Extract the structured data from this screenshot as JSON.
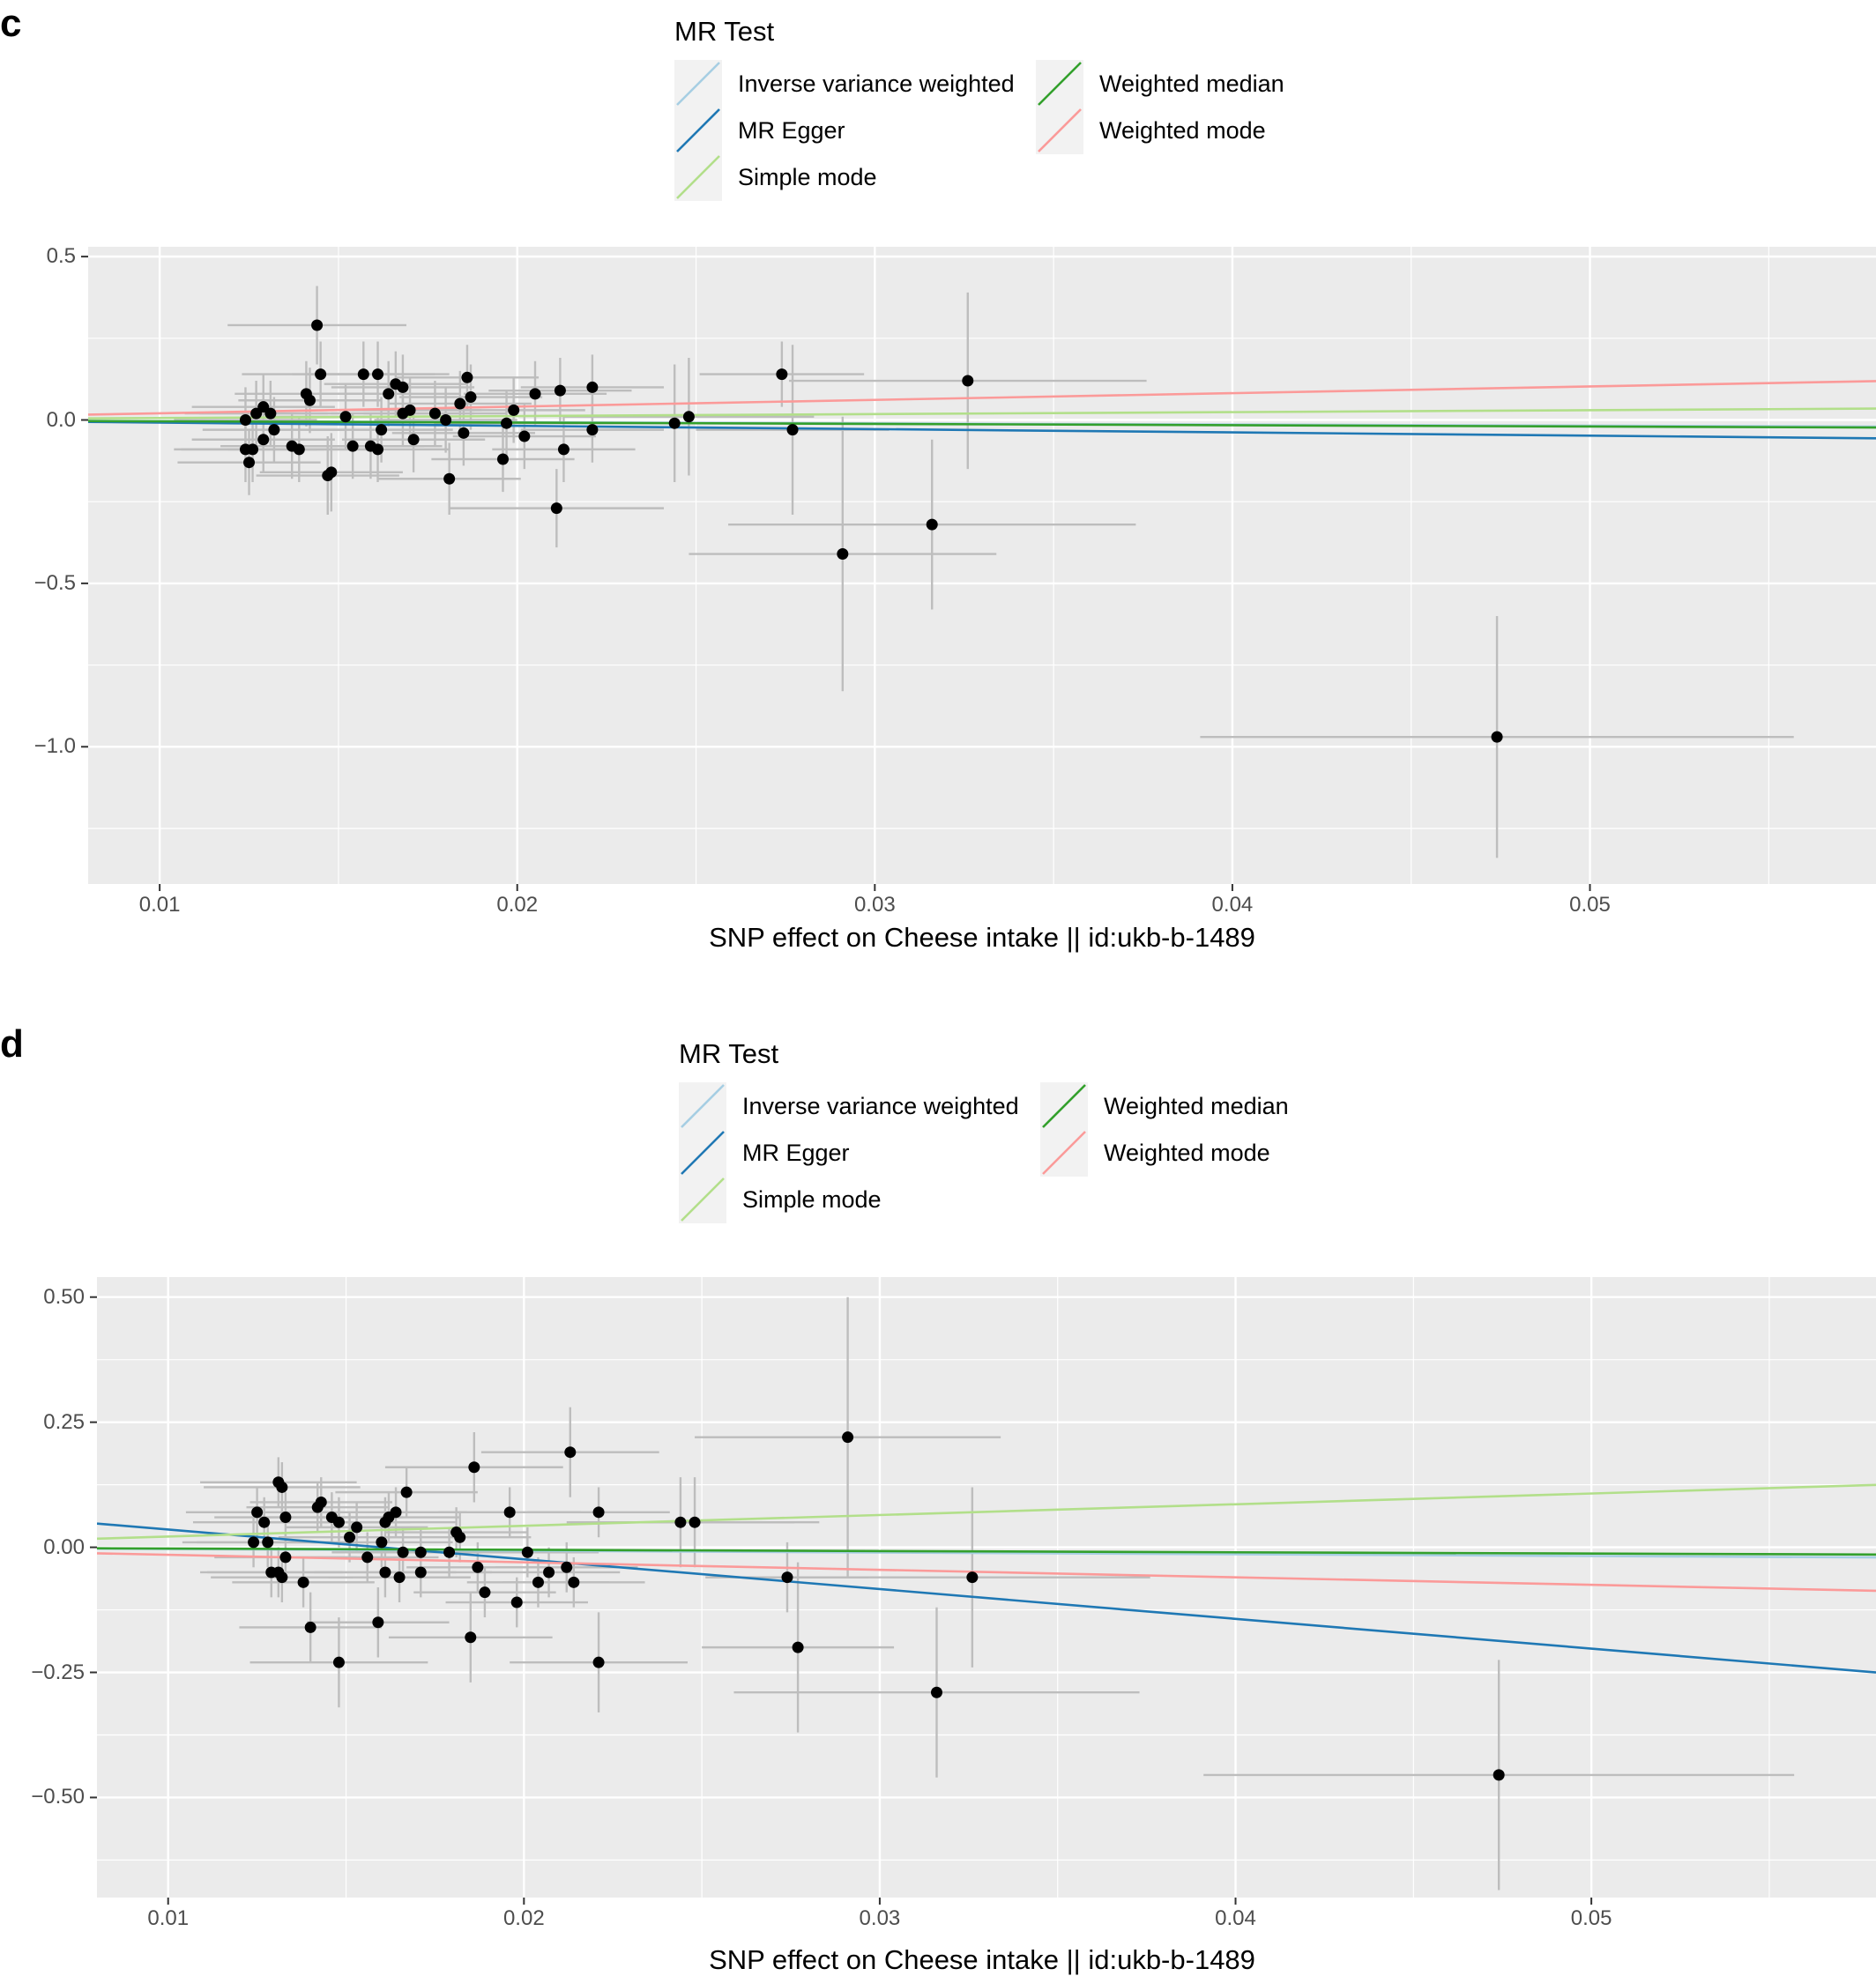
{
  "legend": {
    "title": "MR Test",
    "items": [
      {
        "label": "Inverse variance weighted",
        "color": "#a6cee3"
      },
      {
        "label": "MR Egger",
        "color": "#1f78b4"
      },
      {
        "label": "Simple mode",
        "color": "#b2df8a"
      },
      {
        "label": "Weighted median",
        "color": "#33a02c"
      },
      {
        "label": "Weighted mode",
        "color": "#fb9a99"
      }
    ]
  },
  "colors": {
    "panel_background": "#ebebeb",
    "grid": "#ffffff",
    "point": "#000000",
    "error_bar": "#bdbdbd",
    "legend_key_background": "#f2f2f2"
  },
  "chart_data": [
    {
      "panel": "c",
      "type": "scatter",
      "xlabel": "SNP effect on Cheese intake || id:ukb-b-1489",
      "ylabel": "",
      "xlim": [
        0.008,
        0.058
      ],
      "ylim": [
        -1.42,
        0.53
      ],
      "xticks": [
        0.01,
        0.02,
        0.03,
        0.04,
        0.05
      ],
      "xtick_labels": [
        "0.01",
        "0.02",
        "0.03",
        "0.04",
        "0.05"
      ],
      "yticks": [
        0.5,
        0.0,
        -0.5,
        -1.0
      ],
      "ytick_labels": [
        "0.5",
        "0.0",
        "−0.5",
        "−1.0"
      ],
      "points": [
        {
          "x": 0.0144,
          "y": 0.29,
          "xerr": 0.0025,
          "yerr": 0.12
        },
        {
          "x": 0.0145,
          "y": 0.14,
          "xerr": 0.0022,
          "yerr": 0.1
        },
        {
          "x": 0.0157,
          "y": 0.14,
          "xerr": 0.002,
          "yerr": 0.1
        },
        {
          "x": 0.0161,
          "y": 0.14,
          "xerr": 0.002,
          "yerr": 0.1
        },
        {
          "x": 0.0166,
          "y": 0.11,
          "xerr": 0.002,
          "yerr": 0.1
        },
        {
          "x": 0.0168,
          "y": 0.1,
          "xerr": 0.002,
          "yerr": 0.1
        },
        {
          "x": 0.0164,
          "y": 0.08,
          "xerr": 0.002,
          "yerr": 0.1
        },
        {
          "x": 0.0141,
          "y": 0.08,
          "xerr": 0.002,
          "yerr": 0.1
        },
        {
          "x": 0.0142,
          "y": 0.06,
          "xerr": 0.002,
          "yerr": 0.1
        },
        {
          "x": 0.0186,
          "y": 0.13,
          "xerr": 0.002,
          "yerr": 0.1
        },
        {
          "x": 0.0187,
          "y": 0.07,
          "xerr": 0.002,
          "yerr": 0.1
        },
        {
          "x": 0.0184,
          "y": 0.05,
          "xerr": 0.002,
          "yerr": 0.1
        },
        {
          "x": 0.0212,
          "y": 0.09,
          "xerr": 0.002,
          "yerr": 0.1
        },
        {
          "x": 0.0221,
          "y": 0.1,
          "xerr": 0.002,
          "yerr": 0.1
        },
        {
          "x": 0.0205,
          "y": 0.08,
          "xerr": 0.002,
          "yerr": 0.1
        },
        {
          "x": 0.0129,
          "y": 0.04,
          "xerr": 0.002,
          "yerr": 0.1
        },
        {
          "x": 0.0127,
          "y": 0.02,
          "xerr": 0.002,
          "yerr": 0.1
        },
        {
          "x": 0.0131,
          "y": 0.02,
          "xerr": 0.002,
          "yerr": 0.1
        },
        {
          "x": 0.0124,
          "y": 0.0,
          "xerr": 0.002,
          "yerr": 0.1
        },
        {
          "x": 0.0132,
          "y": -0.03,
          "xerr": 0.002,
          "yerr": 0.1
        },
        {
          "x": 0.0129,
          "y": -0.06,
          "xerr": 0.002,
          "yerr": 0.1
        },
        {
          "x": 0.0126,
          "y": -0.09,
          "xerr": 0.002,
          "yerr": 0.1
        },
        {
          "x": 0.0124,
          "y": -0.09,
          "xerr": 0.002,
          "yerr": 0.1
        },
        {
          "x": 0.0125,
          "y": -0.13,
          "xerr": 0.002,
          "yerr": 0.1
        },
        {
          "x": 0.0137,
          "y": -0.08,
          "xerr": 0.002,
          "yerr": 0.1
        },
        {
          "x": 0.0139,
          "y": -0.09,
          "xerr": 0.002,
          "yerr": 0.1
        },
        {
          "x": 0.0152,
          "y": 0.01,
          "xerr": 0.002,
          "yerr": 0.1
        },
        {
          "x": 0.0162,
          "y": -0.03,
          "xerr": 0.002,
          "yerr": 0.1
        },
        {
          "x": 0.0154,
          "y": -0.08,
          "xerr": 0.002,
          "yerr": 0.1
        },
        {
          "x": 0.0159,
          "y": -0.08,
          "xerr": 0.002,
          "yerr": 0.1
        },
        {
          "x": 0.0161,
          "y": -0.09,
          "xerr": 0.002,
          "yerr": 0.1
        },
        {
          "x": 0.0147,
          "y": -0.17,
          "xerr": 0.002,
          "yerr": 0.12
        },
        {
          "x": 0.0148,
          "y": -0.16,
          "xerr": 0.002,
          "yerr": 0.12
        },
        {
          "x": 0.017,
          "y": 0.03,
          "xerr": 0.002,
          "yerr": 0.1
        },
        {
          "x": 0.0177,
          "y": 0.02,
          "xerr": 0.002,
          "yerr": 0.1
        },
        {
          "x": 0.0168,
          "y": 0.02,
          "xerr": 0.002,
          "yerr": 0.1
        },
        {
          "x": 0.018,
          "y": 0.0,
          "xerr": 0.002,
          "yerr": 0.1
        },
        {
          "x": 0.0171,
          "y": -0.06,
          "xerr": 0.002,
          "yerr": 0.1
        },
        {
          "x": 0.0185,
          "y": -0.04,
          "xerr": 0.002,
          "yerr": 0.1
        },
        {
          "x": 0.0181,
          "y": -0.18,
          "xerr": 0.002,
          "yerr": 0.11
        },
        {
          "x": 0.0199,
          "y": 0.03,
          "xerr": 0.002,
          "yerr": 0.1
        },
        {
          "x": 0.0197,
          "y": -0.01,
          "xerr": 0.002,
          "yerr": 0.1
        },
        {
          "x": 0.0202,
          "y": -0.05,
          "xerr": 0.002,
          "yerr": 0.1
        },
        {
          "x": 0.0196,
          "y": -0.12,
          "xerr": 0.002,
          "yerr": 0.1
        },
        {
          "x": 0.0213,
          "y": -0.09,
          "xerr": 0.002,
          "yerr": 0.1
        },
        {
          "x": 0.0221,
          "y": -0.03,
          "xerr": 0.002,
          "yerr": 0.1
        },
        {
          "x": 0.0211,
          "y": -0.27,
          "xerr": 0.003,
          "yerr": 0.12
        },
        {
          "x": 0.0244,
          "y": -0.01,
          "xerr": 0.0032,
          "yerr": 0.18
        },
        {
          "x": 0.0248,
          "y": 0.01,
          "xerr": 0.0035,
          "yerr": 0.18
        },
        {
          "x": 0.0274,
          "y": 0.14,
          "xerr": 0.0023,
          "yerr": 0.1
        },
        {
          "x": 0.0277,
          "y": -0.03,
          "xerr": 0.0027,
          "yerr": 0.26
        },
        {
          "x": 0.0326,
          "y": 0.12,
          "xerr": 0.005,
          "yerr": 0.27
        },
        {
          "x": 0.0291,
          "y": -0.41,
          "xerr": 0.0043,
          "yerr": 0.42
        },
        {
          "x": 0.0316,
          "y": -0.32,
          "xerr": 0.0057,
          "yerr": 0.26
        },
        {
          "x": 0.0474,
          "y": -0.97,
          "xerr": 0.0083,
          "yerr": 0.37
        }
      ],
      "lines": [
        {
          "series": "Inverse variance weighted",
          "slope": -0.35,
          "intercept": 0.0
        },
        {
          "series": "MR Egger",
          "slope": -1.0,
          "intercept": 0.002
        },
        {
          "series": "Simple mode",
          "slope": 0.6,
          "intercept": 0.0
        },
        {
          "series": "Weighted median",
          "slope": -0.4,
          "intercept": 0.0
        },
        {
          "series": "Weighted mode",
          "slope": 2.05,
          "intercept": 0.0
        }
      ]
    },
    {
      "panel": "d",
      "type": "scatter",
      "xlabel": "SNP effect on Cheese intake || id:ukb-b-1489",
      "ylabel": "",
      "xlim": [
        0.008,
        0.058
      ],
      "ylim": [
        -0.7,
        0.54
      ],
      "xticks": [
        0.01,
        0.02,
        0.03,
        0.04,
        0.05
      ],
      "xtick_labels": [
        "0.01",
        "0.02",
        "0.03",
        "0.04",
        "0.05"
      ],
      "yticks": [
        0.5,
        0.25,
        0.0,
        -0.25,
        -0.5
      ],
      "ytick_labels": [
        "0.50",
        "0.25",
        "0.00",
        "−0.25",
        "−0.50"
      ],
      "points": [
        {
          "x": 0.0131,
          "y": 0.13,
          "xerr": 0.0022,
          "yerr": 0.05
        },
        {
          "x": 0.0132,
          "y": 0.12,
          "xerr": 0.0022,
          "yerr": 0.05
        },
        {
          "x": 0.0143,
          "y": 0.09,
          "xerr": 0.002,
          "yerr": 0.05
        },
        {
          "x": 0.0142,
          "y": 0.08,
          "xerr": 0.002,
          "yerr": 0.05
        },
        {
          "x": 0.0125,
          "y": 0.07,
          "xerr": 0.002,
          "yerr": 0.05
        },
        {
          "x": 0.0133,
          "y": 0.06,
          "xerr": 0.002,
          "yerr": 0.05
        },
        {
          "x": 0.0146,
          "y": 0.06,
          "xerr": 0.002,
          "yerr": 0.05
        },
        {
          "x": 0.0127,
          "y": 0.05,
          "xerr": 0.002,
          "yerr": 0.05
        },
        {
          "x": 0.0148,
          "y": 0.05,
          "xerr": 0.002,
          "yerr": 0.05
        },
        {
          "x": 0.0153,
          "y": 0.04,
          "xerr": 0.002,
          "yerr": 0.05
        },
        {
          "x": 0.0167,
          "y": 0.11,
          "xerr": 0.002,
          "yerr": 0.05
        },
        {
          "x": 0.0164,
          "y": 0.07,
          "xerr": 0.002,
          "yerr": 0.05
        },
        {
          "x": 0.0162,
          "y": 0.06,
          "xerr": 0.002,
          "yerr": 0.05
        },
        {
          "x": 0.0161,
          "y": 0.05,
          "xerr": 0.002,
          "yerr": 0.05
        },
        {
          "x": 0.0186,
          "y": 0.16,
          "xerr": 0.0025,
          "yerr": 0.07
        },
        {
          "x": 0.0213,
          "y": 0.19,
          "xerr": 0.0025,
          "yerr": 0.09
        },
        {
          "x": 0.0181,
          "y": 0.03,
          "xerr": 0.002,
          "yerr": 0.05
        },
        {
          "x": 0.0196,
          "y": 0.07,
          "xerr": 0.002,
          "yerr": 0.05
        },
        {
          "x": 0.0221,
          "y": 0.07,
          "xerr": 0.002,
          "yerr": 0.05
        },
        {
          "x": 0.0244,
          "y": 0.05,
          "xerr": 0.0032,
          "yerr": 0.09
        },
        {
          "x": 0.0248,
          "y": 0.05,
          "xerr": 0.0035,
          "yerr": 0.09
        },
        {
          "x": 0.0291,
          "y": 0.22,
          "xerr": 0.0043,
          "yerr": 0.28
        },
        {
          "x": 0.0124,
          "y": 0.01,
          "xerr": 0.002,
          "yerr": 0.05
        },
        {
          "x": 0.0128,
          "y": 0.01,
          "xerr": 0.002,
          "yerr": 0.05
        },
        {
          "x": 0.0151,
          "y": 0.02,
          "xerr": 0.002,
          "yerr": 0.05
        },
        {
          "x": 0.016,
          "y": 0.01,
          "xerr": 0.002,
          "yerr": 0.05
        },
        {
          "x": 0.0133,
          "y": -0.02,
          "xerr": 0.002,
          "yerr": 0.05
        },
        {
          "x": 0.0156,
          "y": -0.02,
          "xerr": 0.002,
          "yerr": 0.05
        },
        {
          "x": 0.0166,
          "y": -0.01,
          "xerr": 0.002,
          "yerr": 0.05
        },
        {
          "x": 0.0171,
          "y": -0.01,
          "xerr": 0.002,
          "yerr": 0.05
        },
        {
          "x": 0.0179,
          "y": -0.01,
          "xerr": 0.002,
          "yerr": 0.05
        },
        {
          "x": 0.0182,
          "y": 0.02,
          "xerr": 0.002,
          "yerr": 0.05
        },
        {
          "x": 0.0201,
          "y": -0.01,
          "xerr": 0.002,
          "yerr": 0.05
        },
        {
          "x": 0.0129,
          "y": -0.05,
          "xerr": 0.002,
          "yerr": 0.05
        },
        {
          "x": 0.0131,
          "y": -0.05,
          "xerr": 0.002,
          "yerr": 0.05
        },
        {
          "x": 0.0132,
          "y": -0.06,
          "xerr": 0.002,
          "yerr": 0.05
        },
        {
          "x": 0.0138,
          "y": -0.07,
          "xerr": 0.002,
          "yerr": 0.05
        },
        {
          "x": 0.0161,
          "y": -0.05,
          "xerr": 0.002,
          "yerr": 0.05
        },
        {
          "x": 0.0165,
          "y": -0.06,
          "xerr": 0.002,
          "yerr": 0.05
        },
        {
          "x": 0.0171,
          "y": -0.05,
          "xerr": 0.002,
          "yerr": 0.05
        },
        {
          "x": 0.0187,
          "y": -0.04,
          "xerr": 0.002,
          "yerr": 0.05
        },
        {
          "x": 0.0207,
          "y": -0.05,
          "xerr": 0.002,
          "yerr": 0.05
        },
        {
          "x": 0.0212,
          "y": -0.04,
          "xerr": 0.002,
          "yerr": 0.05
        },
        {
          "x": 0.0204,
          "y": -0.07,
          "xerr": 0.002,
          "yerr": 0.05
        },
        {
          "x": 0.0214,
          "y": -0.07,
          "xerr": 0.002,
          "yerr": 0.05
        },
        {
          "x": 0.0189,
          "y": -0.09,
          "xerr": 0.002,
          "yerr": 0.05
        },
        {
          "x": 0.0198,
          "y": -0.11,
          "xerr": 0.002,
          "yerr": 0.05
        },
        {
          "x": 0.0159,
          "y": -0.15,
          "xerr": 0.002,
          "yerr": 0.07
        },
        {
          "x": 0.014,
          "y": -0.16,
          "xerr": 0.002,
          "yerr": 0.07
        },
        {
          "x": 0.0185,
          "y": -0.18,
          "xerr": 0.0023,
          "yerr": 0.09
        },
        {
          "x": 0.0148,
          "y": -0.23,
          "xerr": 0.0025,
          "yerr": 0.09
        },
        {
          "x": 0.0221,
          "y": -0.23,
          "xerr": 0.0025,
          "yerr": 0.1
        },
        {
          "x": 0.0274,
          "y": -0.06,
          "xerr": 0.0023,
          "yerr": 0.07
        },
        {
          "x": 0.0326,
          "y": -0.06,
          "xerr": 0.005,
          "yerr": 0.18
        },
        {
          "x": 0.0277,
          "y": -0.2,
          "xerr": 0.0027,
          "yerr": 0.17
        },
        {
          "x": 0.0316,
          "y": -0.29,
          "xerr": 0.0057,
          "yerr": 0.17
        },
        {
          "x": 0.0474,
          "y": -0.455,
          "xerr": 0.0083,
          "yerr": 0.23
        }
      ],
      "lines": [
        {
          "series": "Inverse variance weighted",
          "slope": -0.35,
          "intercept": 0.0
        },
        {
          "series": "MR Egger",
          "slope": -5.95,
          "intercept": 0.095
        },
        {
          "series": "Simple mode",
          "slope": 2.15,
          "intercept": 0.0
        },
        {
          "series": "Weighted median",
          "slope": -0.25,
          "intercept": 0.0
        },
        {
          "series": "Weighted mode",
          "slope": -1.5,
          "intercept": 0.0
        }
      ]
    }
  ]
}
